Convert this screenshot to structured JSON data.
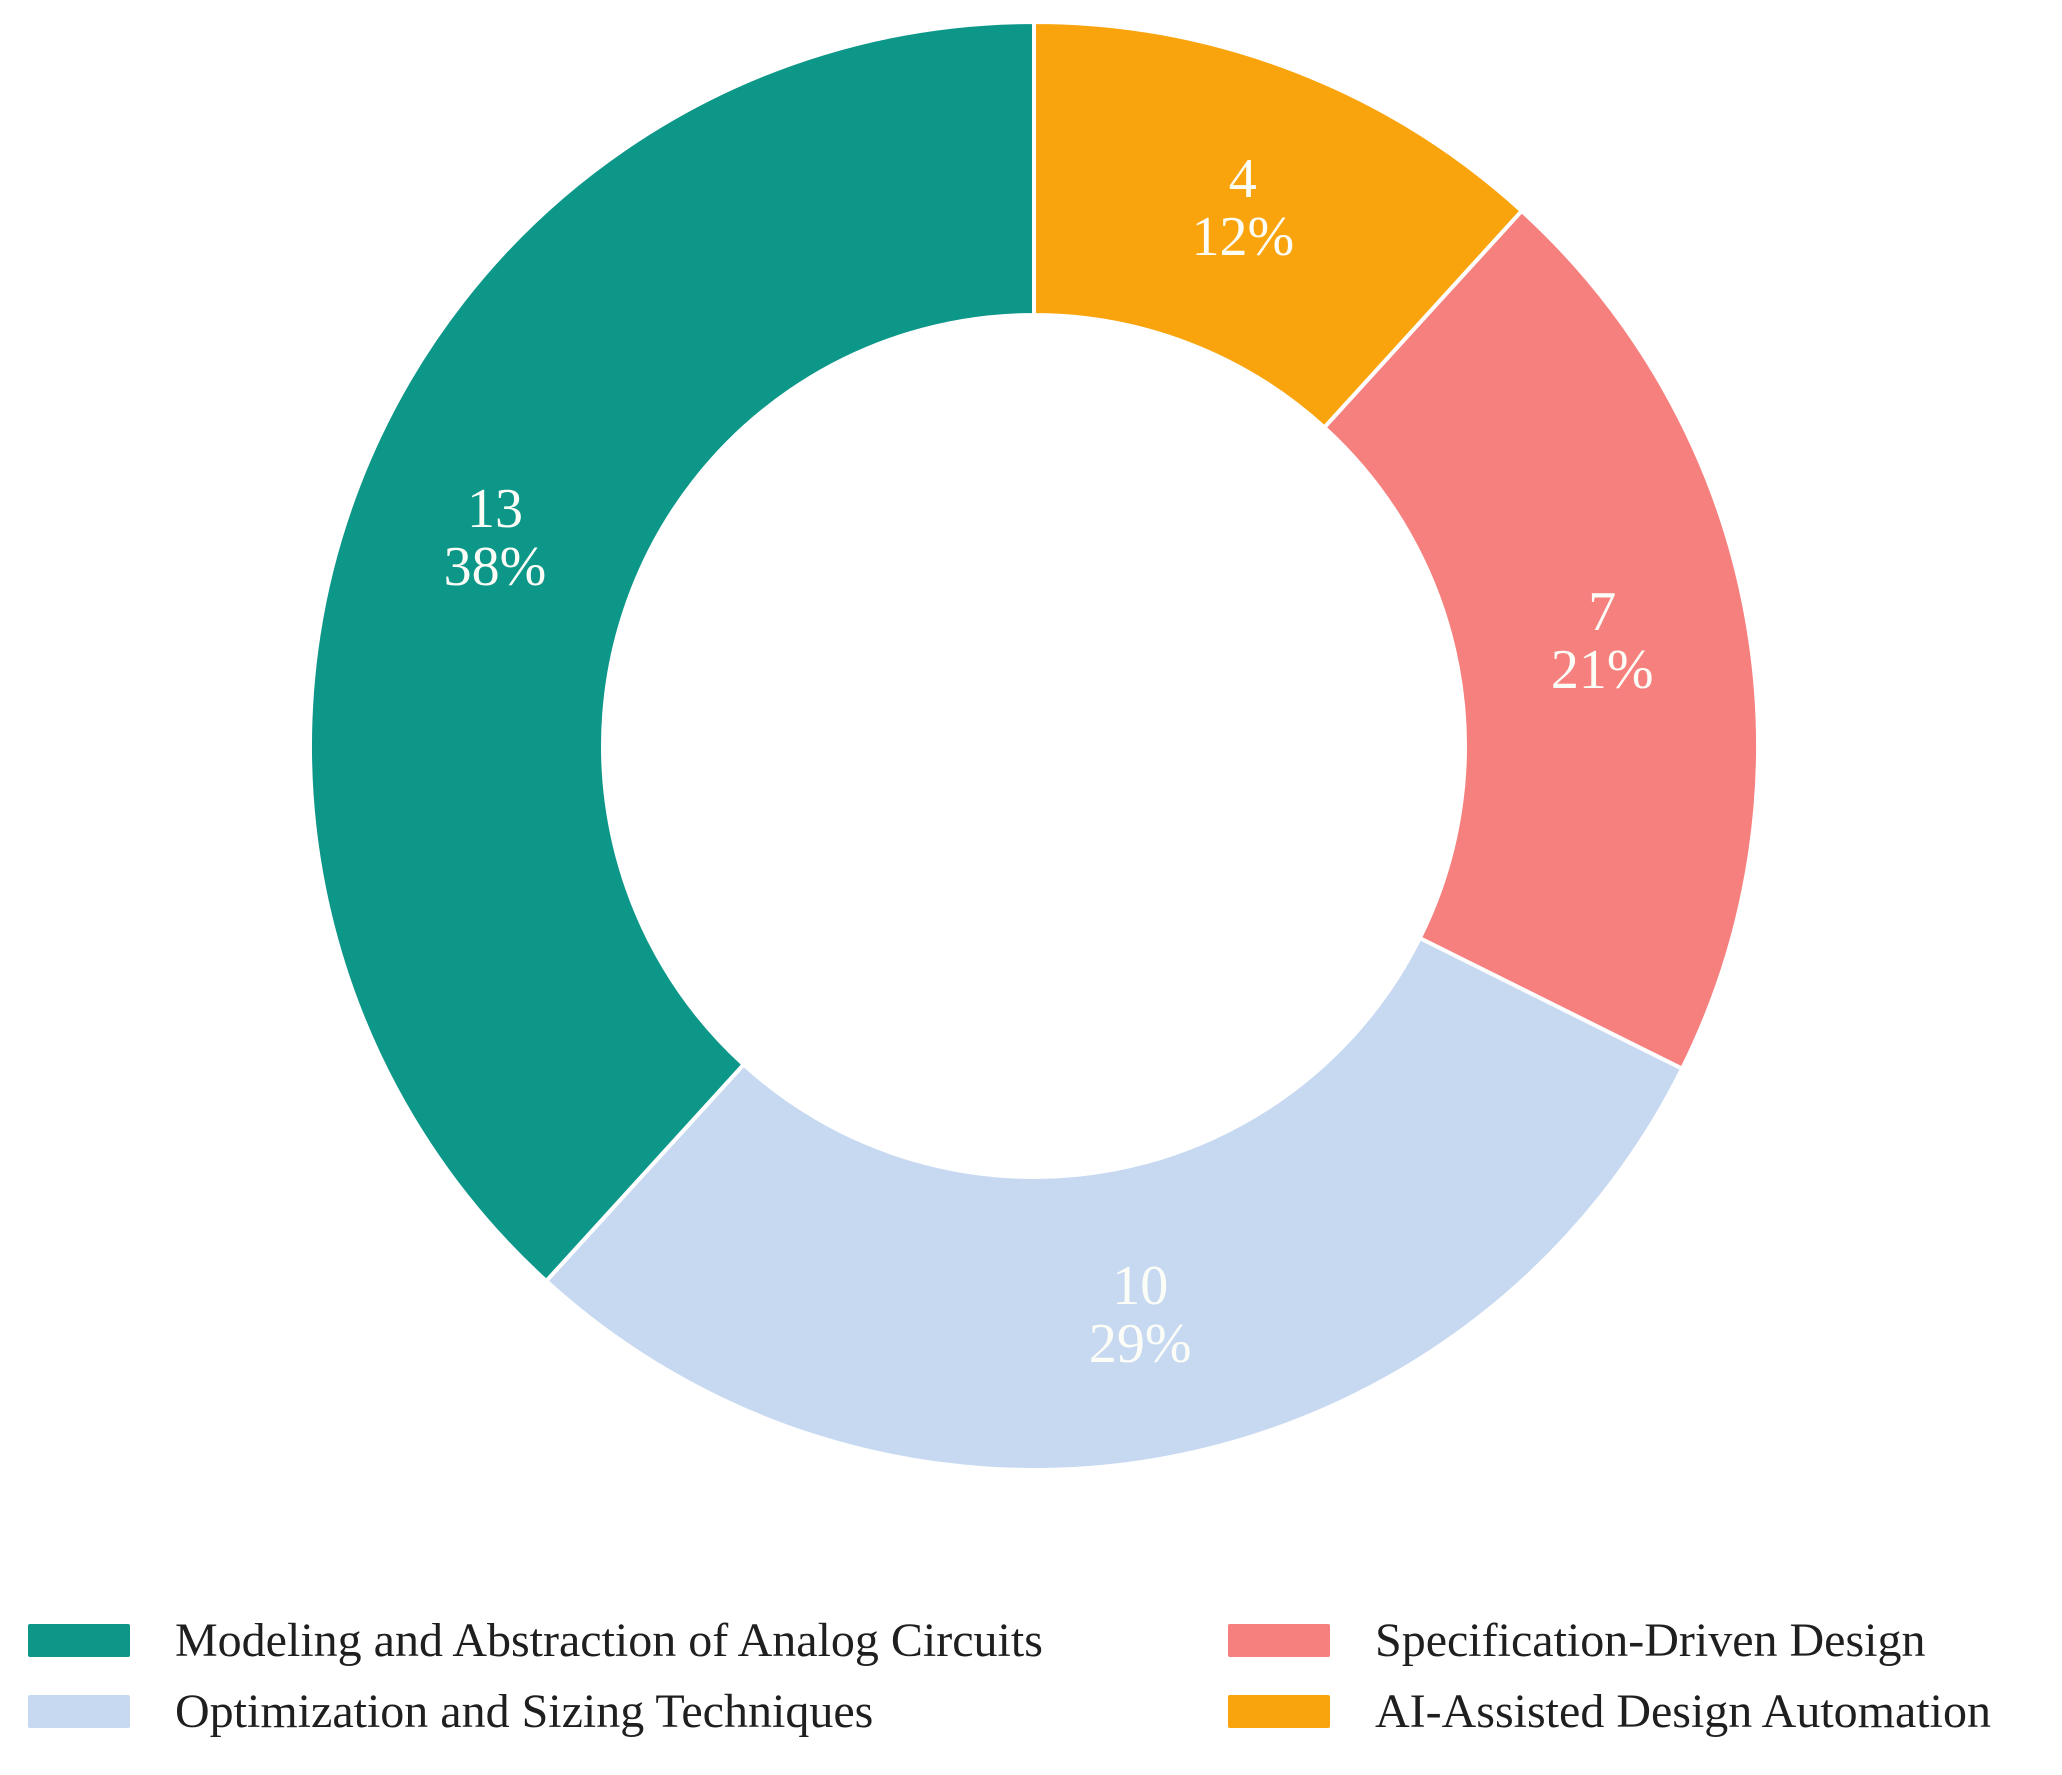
{
  "chart_data": {
    "type": "pie",
    "subtype": "donut",
    "title": "",
    "total": 34,
    "start_angle_deg": 0,
    "direction": "clockwise",
    "slices": [
      {
        "label": "AI-Assisted Design Automation",
        "value": 4,
        "value_label": "4",
        "percent_label": "12%",
        "color": "#F9A40D"
      },
      {
        "label": "Specification-Driven Design",
        "value": 7,
        "value_label": "7",
        "percent_label": "21%",
        "color": "#F5807E"
      },
      {
        "label": "Optimization and Sizing Techniques",
        "value": 10,
        "value_label": "10",
        "percent_label": "29%",
        "color": "#C6D9F1"
      },
      {
        "label": "Modeling and Abstraction of Analog Circuits",
        "value": 13,
        "value_label": "13",
        "percent_label": "38%",
        "color": "#0C9789"
      }
    ],
    "slice_label_color": "#FDFDF8",
    "legend_position": "bottom"
  },
  "legend": {
    "items": [
      {
        "label": "Modeling and Abstraction of Analog Circuits",
        "color": "#0C9789"
      },
      {
        "label": "Specification-Driven Design",
        "color": "#F5807E"
      },
      {
        "label": "Optimization and Sizing Techniques",
        "color": "#C6D9F1"
      },
      {
        "label": "AI-Assisted Design Automation",
        "color": "#F9A40D"
      }
    ]
  }
}
